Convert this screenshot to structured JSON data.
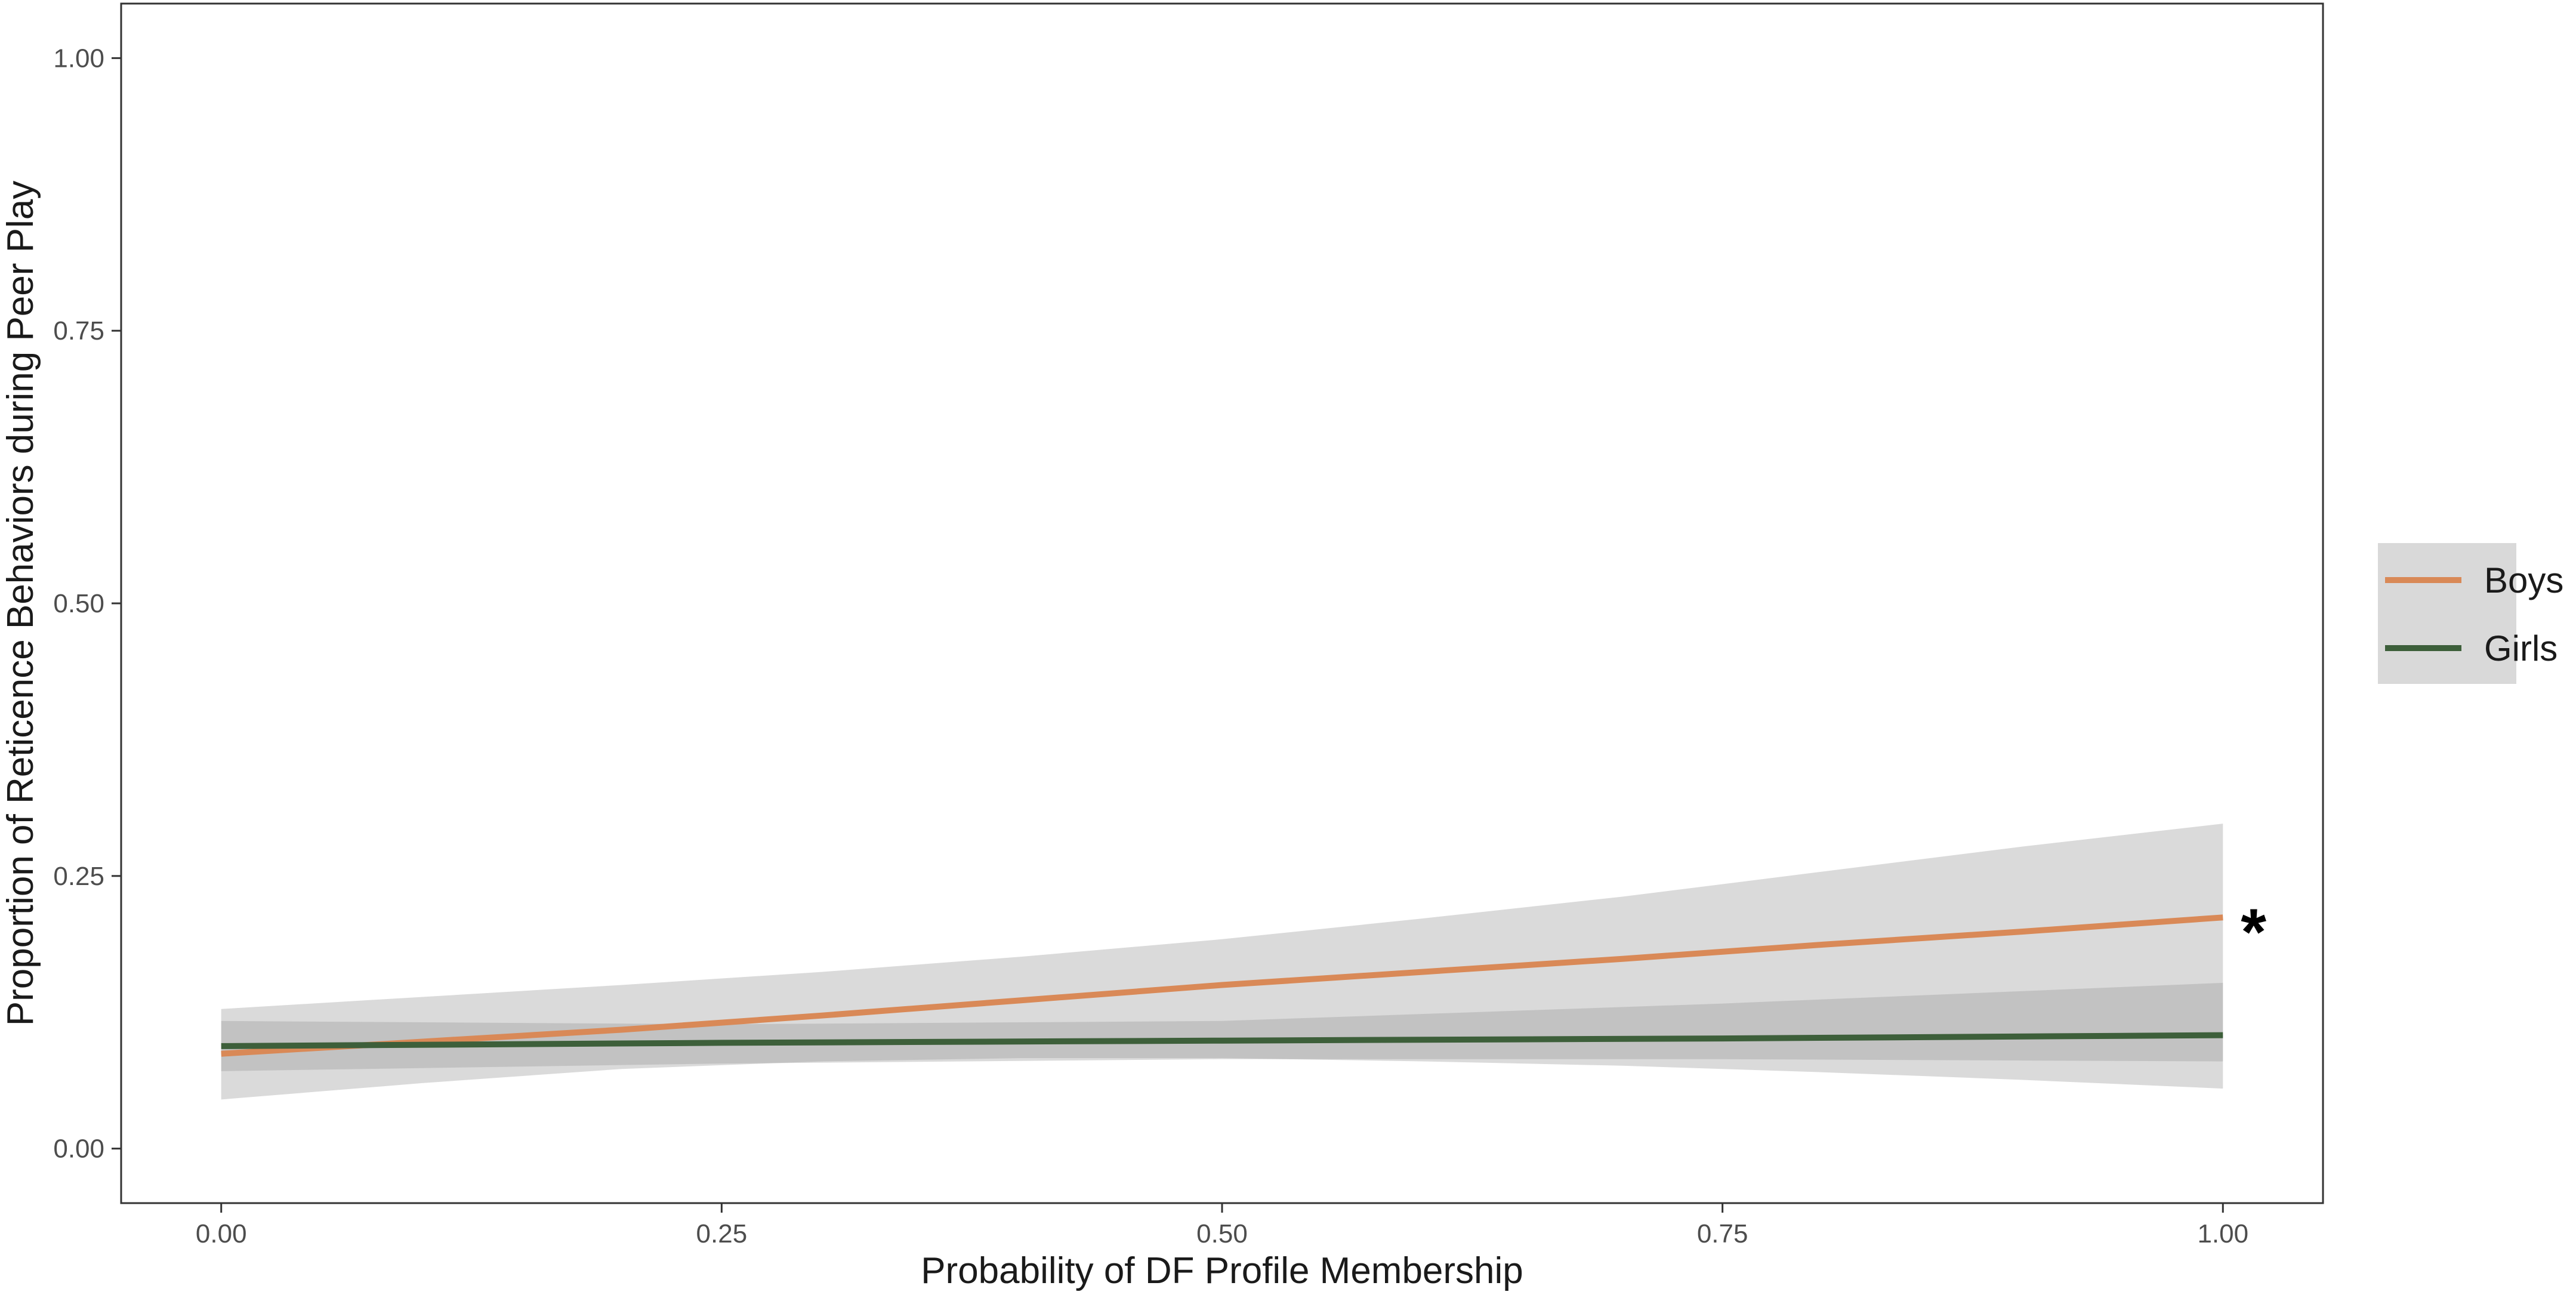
{
  "chart_data": {
    "type": "line",
    "title": "",
    "xlabel": "Probability of DF Profile Membership",
    "ylabel": "Proportion of Reticence Behaviors during Peer Play",
    "xlim": [
      -0.05,
      1.05
    ],
    "ylim": [
      -0.05,
      1.05
    ],
    "x_ticks": [
      0.0,
      0.25,
      0.5,
      0.75,
      1.0
    ],
    "x_tick_labels": [
      "0.00",
      "0.25",
      "0.50",
      "0.75",
      "1.00"
    ],
    "y_ticks": [
      0.0,
      0.25,
      0.5,
      0.75,
      1.0
    ],
    "y_tick_labels": [
      "0.00",
      "0.25",
      "0.50",
      "0.75",
      "1.00"
    ],
    "grid": false,
    "legend_position": "right",
    "series": [
      {
        "name": "Boys",
        "color": "#d98957",
        "x": [
          0.0,
          0.1,
          0.2,
          0.3,
          0.4,
          0.5,
          0.6,
          0.7,
          0.8,
          0.9,
          1.0
        ],
        "y": [
          0.087,
          0.098,
          0.109,
          0.122,
          0.136,
          0.15,
          0.162,
          0.174,
          0.187,
          0.199,
          0.212
        ],
        "ci_lower": [
          0.045,
          0.06,
          0.073,
          0.08,
          0.083,
          0.083,
          0.08,
          0.076,
          0.07,
          0.063,
          0.055
        ],
        "ci_upper": [
          0.128,
          0.139,
          0.15,
          0.162,
          0.176,
          0.192,
          0.211,
          0.231,
          0.254,
          0.277,
          0.298
        ]
      },
      {
        "name": "Girls",
        "color": "#3d5f3a",
        "x": [
          0.0,
          0.25,
          0.5,
          0.75,
          1.0
        ],
        "y": [
          0.094,
          0.097,
          0.099,
          0.101,
          0.104
        ],
        "ci_lower": [
          0.071,
          0.078,
          0.082,
          0.082,
          0.08
        ],
        "ci_upper": [
          0.117,
          0.114,
          0.117,
          0.133,
          0.152
        ]
      }
    ],
    "annotations": [
      {
        "text": "*",
        "x": 1.0,
        "y": 0.212,
        "series": "Boys"
      }
    ]
  }
}
